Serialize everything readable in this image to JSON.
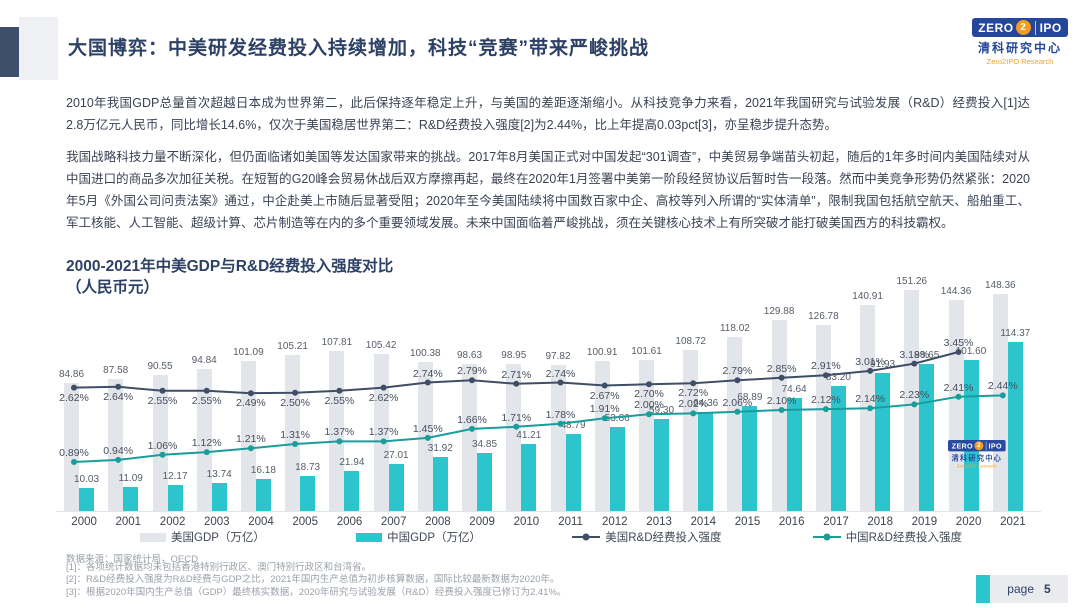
{
  "header": {
    "title": "大国博弈：中美研发经费投入持续增加，科技“竞赛”带来严峻挑战"
  },
  "logo": {
    "zero": "ZERO",
    "two": "2",
    "ipo": "IPO",
    "cn": "清科研究中心",
    "en": "Zero2IPO Research"
  },
  "paragraphs": {
    "p1": "2010年我国GDP总量首次超越日本成为世界第二，此后保持逐年稳定上升，与美国的差距逐渐缩小。从科技竞争力来看，2021年我国研究与试验发展（R&D）经费投入[1]达2.8万亿元人民币，同比增长14.6%，仅次于美国稳居世界第二：R&D经费投入强度[2]为2.44%，比上年提高0.03pct[3]，亦呈稳步提升态势。",
    "p2": "我国战略科技力量不断深化，但仍面临诸如美国等发达国家带来的挑战。2017年8月美国正式对中国发起“301调查”，中美贸易争端苗头初起，随后的1年多时间内美国陆续对从中国进口的商品多次加征关税。在短暂的G20峰会贸易休战后双方摩擦再起，最终在2020年1月签署中美第一阶段经贸协议后暂时告一段落。然而中美竞争形势仍然紧张：2020年5月《外国公司问责法案》通过，中企赴美上市随后显著受阻；2020年至今美国陆续将中国数百家中企、高校等列入所谓的“实体清单”，限制我国包括航空航天、船舶重工、军工核能、人工智能、超级计算、芯片制造等在内的多个重要领域发展。未来中国面临着严峻挑战，须在关键核心技术上有所突破才能打破美国西方的科技霸权。"
  },
  "chart_data": {
    "type": "bar",
    "subtype": "combo-bar-line-dual-axis",
    "title": "2000-2021年中美GDP与R&D经费投入强度对比",
    "subtitle": "（人民币元）",
    "categories": [
      2000,
      2001,
      2002,
      2003,
      2004,
      2005,
      2006,
      2007,
      2008,
      2009,
      2010,
      2011,
      2012,
      2013,
      2014,
      2015,
      2016,
      2017,
      2018,
      2019,
      2020,
      2021
    ],
    "series": [
      {
        "name": "美国GDP（万亿）",
        "type": "bar",
        "color": "#e2e5ea",
        "values": [
          84.86,
          87.58,
          90.55,
          94.84,
          101.09,
          105.21,
          107.81,
          105.42,
          100.38,
          98.63,
          98.95,
          97.82,
          100.91,
          101.61,
          108.72,
          118.02,
          129.88,
          126.78,
          140.91,
          151.26,
          144.36,
          148.36
        ]
      },
      {
        "name": "中国GDP（万亿）",
        "type": "bar",
        "color": "#2cc5ce",
        "values": [
          10.03,
          11.09,
          12.17,
          13.74,
          16.18,
          18.73,
          21.94,
          27.01,
          31.92,
          34.85,
          41.21,
          48.79,
          53.86,
          59.3,
          64.36,
          68.89,
          74.64,
          83.2,
          91.93,
          98.65,
          101.6,
          114.37
        ]
      },
      {
        "name": "美国R&D经费投入强度",
        "type": "line",
        "unit": "%",
        "color": "#3f4e66",
        "values": [
          2.62,
          2.64,
          2.55,
          2.55,
          2.49,
          2.5,
          2.55,
          2.62,
          2.74,
          2.79,
          2.71,
          2.74,
          2.67,
          2.7,
          2.72,
          2.79,
          2.85,
          2.91,
          3.01,
          3.18,
          3.45,
          null
        ]
      },
      {
        "name": "中国R&D经费投入强度",
        "type": "line",
        "unit": "%",
        "color": "#199d9b",
        "values": [
          0.89,
          0.94,
          1.06,
          1.12,
          1.21,
          1.31,
          1.37,
          1.37,
          1.45,
          1.66,
          1.71,
          1.78,
          1.91,
          2.0,
          2.02,
          2.06,
          2.1,
          2.12,
          2.14,
          2.23,
          2.41,
          2.44
        ]
      }
    ],
    "legend_position": "bottom",
    "grid": false,
    "axes_visible": false
  },
  "source": "数据来源：国家统计局，OECD",
  "footnotes": [
    "[1]：各项统计数据均未包括香港特别行政区、澳门特别行政区和台湾省。",
    "[2]：R&D经费投入强度为R&D经费与GDP之比，2021年国内生产总值为初步核算数据，国际比较最新数据为2020年。",
    "[3]：根据2020年国内生产总值（GDP）最终核实数据，2020年研究与试验发展（R&D）经费投入强度已修订为2.41%。"
  ],
  "footer": {
    "page_label": "page",
    "page_number": "5"
  }
}
